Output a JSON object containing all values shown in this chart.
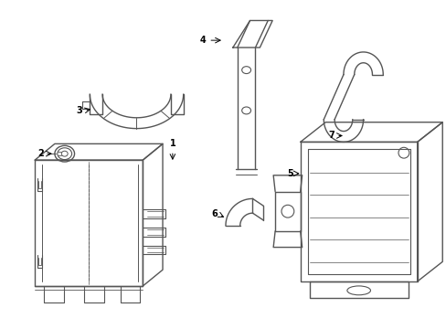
{
  "background_color": "#ffffff",
  "line_color": "#555555",
  "label_color": "#000000",
  "lw": 1.0,
  "fig_width": 4.89,
  "fig_height": 3.6,
  "dpi": 100
}
